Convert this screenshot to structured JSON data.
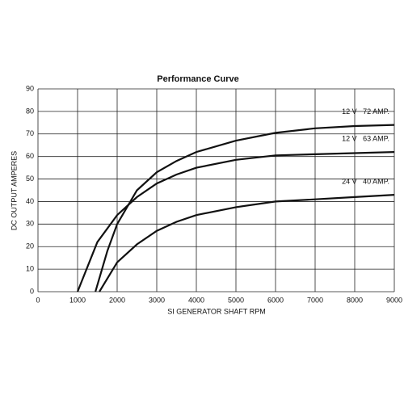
{
  "chart_data": {
    "type": "line",
    "title": "Performance Curve",
    "x_label": "SI GENERATOR SHAFT RPM",
    "y_label": "DC OUTPUT AMPERES",
    "xlim": [
      0,
      9000
    ],
    "ylim": [
      0,
      90
    ],
    "xticks": [
      0,
      1000,
      2000,
      3000,
      4000,
      5000,
      6000,
      7000,
      8000,
      9000
    ],
    "yticks": [
      0,
      10,
      20,
      30,
      40,
      50,
      60,
      70,
      80,
      90
    ],
    "grid": true,
    "series": [
      {
        "name": "12 V   72 AMP.",
        "color": "#111111",
        "x": [
          1450,
          1750,
          2000,
          2500,
          3000,
          3500,
          4000,
          5000,
          6000,
          7000,
          8000,
          9000
        ],
        "values": [
          0,
          18,
          30,
          45,
          53,
          58,
          62,
          67,
          70.5,
          72.5,
          73.5,
          74
        ]
      },
      {
        "name": "12 V   63 AMP.",
        "color": "#111111",
        "x": [
          1000,
          1500,
          2000,
          2500,
          3000,
          3500,
          4000,
          5000,
          6000,
          7000,
          8000,
          9000
        ],
        "values": [
          0,
          22,
          34,
          42,
          48,
          52,
          55,
          58.5,
          60.5,
          61,
          61.5,
          62
        ]
      },
      {
        "name": "24 V   40 AMP.",
        "color": "#111111",
        "x": [
          1550,
          2000,
          2500,
          3000,
          3500,
          4000,
          5000,
          6000,
          7000,
          8000,
          9000
        ],
        "values": [
          0,
          13,
          21,
          27,
          31,
          34,
          37.5,
          40,
          41,
          42,
          43
        ]
      }
    ]
  }
}
